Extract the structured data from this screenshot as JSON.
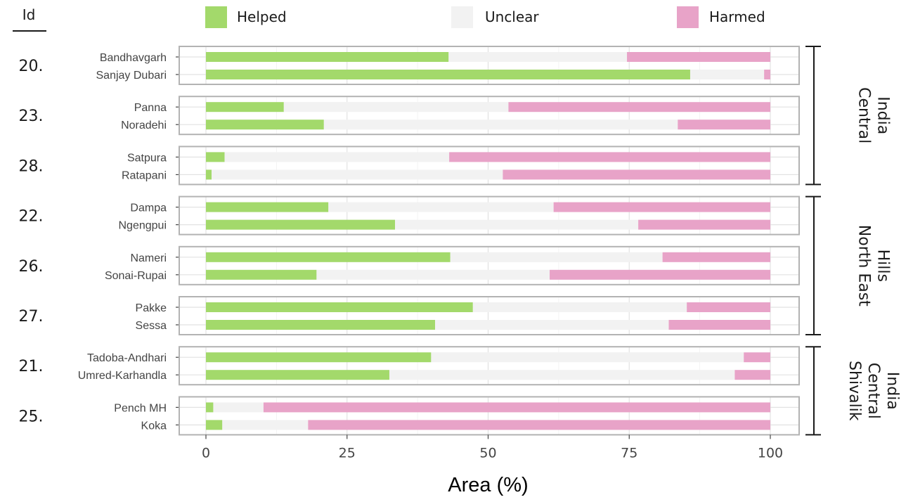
{
  "chart_data": {
    "type": "bar",
    "orientation": "horizontal",
    "stacked": true,
    "xlabel": "Area (%)",
    "xlim": [
      0,
      100
    ],
    "xticks": [
      0,
      25,
      50,
      75,
      100
    ],
    "id_header": "Id",
    "series": [
      {
        "name": "Helped",
        "color": "#a3d96b"
      },
      {
        "name": "Unclear",
        "color": "#f2f2f2"
      },
      {
        "name": "Harmed",
        "color": "#e8a3c8"
      }
    ],
    "groups": [
      {
        "id": "20.",
        "sites": [
          {
            "name": "Bandhavgarh",
            "helped": 43,
            "unclear": 31.6,
            "harmed": 25.4
          },
          {
            "name": "Sanjay Dubari",
            "helped": 85.8,
            "unclear": 13.1,
            "harmed": 1.1
          }
        ]
      },
      {
        "id": "23.",
        "sites": [
          {
            "name": "Panna",
            "helped": 13.8,
            "unclear": 39.8,
            "harmed": 46.4
          },
          {
            "name": "Noradehi",
            "helped": 20.9,
            "unclear": 62.7,
            "harmed": 16.4
          }
        ]
      },
      {
        "id": "28.",
        "sites": [
          {
            "name": "Satpura",
            "helped": 3.3,
            "unclear": 39.8,
            "harmed": 56.9
          },
          {
            "name": "Ratapani",
            "helped": 1,
            "unclear": 51.6,
            "harmed": 47.4
          }
        ]
      },
      {
        "id": "22.",
        "sites": [
          {
            "name": "Dampa",
            "helped": 21.7,
            "unclear": 39.9,
            "harmed": 38.4
          },
          {
            "name": "Ngengpui",
            "helped": 33.5,
            "unclear": 43.1,
            "harmed": 23.4
          }
        ]
      },
      {
        "id": "26.",
        "sites": [
          {
            "name": "Nameri",
            "helped": 43.3,
            "unclear": 37.6,
            "harmed": 19.1
          },
          {
            "name": "Sonai-Rupai",
            "helped": 19.6,
            "unclear": 41.3,
            "harmed": 39.1
          }
        ]
      },
      {
        "id": "27.",
        "sites": [
          {
            "name": "Pakke",
            "helped": 47.3,
            "unclear": 37.9,
            "harmed": 14.8
          },
          {
            "name": "Sessa",
            "helped": 40.6,
            "unclear": 41.4,
            "harmed": 18
          }
        ]
      },
      {
        "id": "21.",
        "sites": [
          {
            "name": "Tadoba-Andhari",
            "helped": 39.9,
            "unclear": 55.4,
            "harmed": 4.7
          },
          {
            "name": "Umred-Karhandla",
            "helped": 32.5,
            "unclear": 61.2,
            "harmed": 6.3
          }
        ]
      },
      {
        "id": "25.",
        "sites": [
          {
            "name": "Pench MH",
            "helped": 1.3,
            "unclear": 8.9,
            "harmed": 89.8
          },
          {
            "name": "Koka",
            "helped": 2.9,
            "unclear": 15.2,
            "harmed": 81.9
          }
        ]
      }
    ],
    "regions": [
      {
        "lines": [
          "Central",
          "India"
        ],
        "first_group": 0,
        "last_group": 2
      },
      {
        "lines": [
          "North East",
          "Hills"
        ],
        "first_group": 3,
        "last_group": 5
      },
      {
        "lines": [
          "Shivalik",
          "Central",
          "India"
        ],
        "first_group": 6,
        "last_group": 7
      }
    ],
    "grid": true,
    "legend_position": "top"
  }
}
